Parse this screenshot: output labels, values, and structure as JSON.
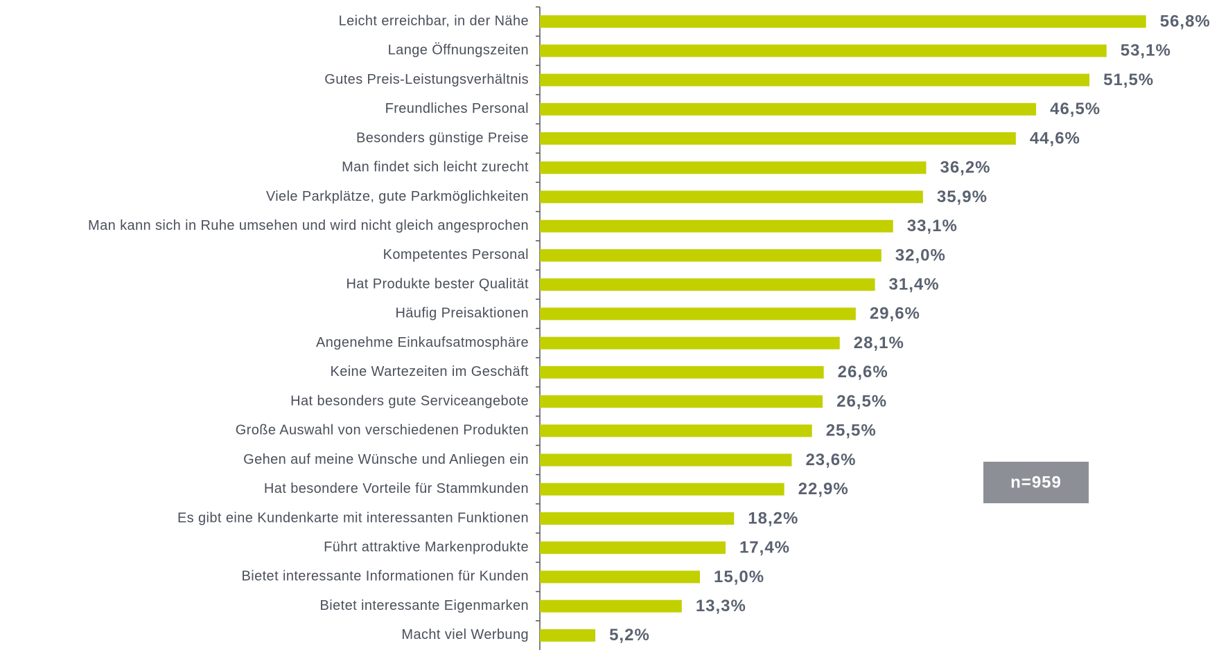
{
  "chart_data": {
    "type": "bar",
    "orientation": "horizontal",
    "annotation": "n=959",
    "categories": [
      "Leicht erreichbar, in der Nähe",
      "Lange Öffnungszeiten",
      "Gutes Preis-Leistungsverhältnis",
      "Freundliches Personal",
      "Besonders günstige Preise",
      "Man findet sich leicht zurecht",
      "Viele Parkplätze, gute Parkmöglichkeiten",
      "Man kann sich in Ruhe umsehen und wird nicht gleich angesprochen",
      "Kompetentes Personal",
      "Hat Produkte bester Qualität",
      "Häufig Preisaktionen",
      "Angenehme Einkaufsatmosphäre",
      "Keine Wartezeiten im Geschäft",
      "Hat besonders gute Serviceangebote",
      "Große Auswahl von verschiedenen Produkten",
      "Gehen auf meine Wünsche und Anliegen ein",
      "Hat besondere Vorteile für Stammkunden",
      "Es gibt eine Kundenkarte mit interessanten Funktionen",
      "Führt attraktive Markenprodukte",
      "Bietet interessante Informationen für Kunden",
      "Bietet interessante Eigenmarken",
      "Macht viel Werbung"
    ],
    "values": [
      56.8,
      53.1,
      51.5,
      46.5,
      44.6,
      36.2,
      35.9,
      33.1,
      32.0,
      31.4,
      29.6,
      28.1,
      26.6,
      26.5,
      25.5,
      23.6,
      22.9,
      18.2,
      17.4,
      15.0,
      13.3,
      5.2
    ],
    "value_labels": [
      "56,8%",
      "53,1%",
      "51,5%",
      "46,5%",
      "44,6%",
      "36,2%",
      "35,9%",
      "33,1%",
      "32,0%",
      "31,4%",
      "29,6%",
      "28,1%",
      "26,6%",
      "26,5%",
      "25,5%",
      "23,6%",
      "22,9%",
      "18,2%",
      "17,4%",
      "15,0%",
      "13,3%",
      "5,2%"
    ],
    "color": "#c2d000",
    "xlim": [
      0,
      60
    ]
  }
}
